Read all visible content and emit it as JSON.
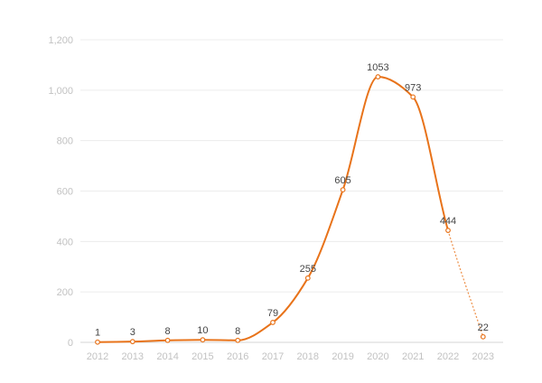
{
  "chart_data": {
    "type": "line",
    "x": [
      "2012",
      "2013",
      "2014",
      "2015",
      "2016",
      "2017",
      "2018",
      "2019",
      "2020",
      "2021",
      "2022",
      "2023"
    ],
    "series": [
      {
        "values": [
          1,
          3,
          8,
          10,
          8,
          79,
          255,
          605,
          1053,
          973,
          444,
          22
        ],
        "color": "#e8731a",
        "last_segment_dashed": true
      }
    ],
    "yticks": [
      "0",
      "200",
      "400",
      "600",
      "800",
      "1,000",
      "1,200"
    ],
    "ylim": [
      0,
      1200
    ],
    "grid": true,
    "smooth": true
  }
}
